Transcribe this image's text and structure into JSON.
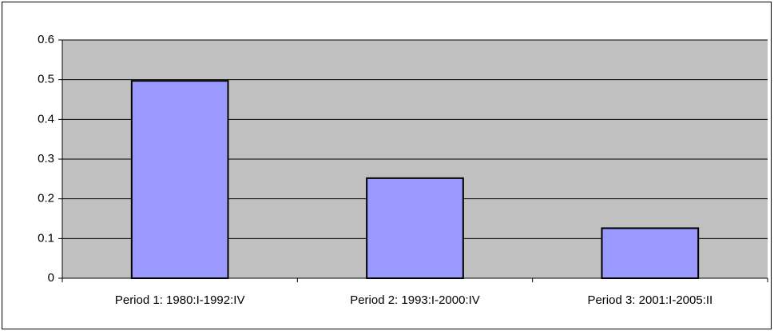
{
  "chart_data": {
    "type": "bar",
    "categories": [
      "Period 1: 1980:I-1992:IV",
      "Period 2: 1993:I-2000:IV",
      "Period 3: 2001:I-2005:II"
    ],
    "values": [
      0.497,
      0.252,
      0.126
    ],
    "color": "#9999ff",
    "ylim": [
      0,
      0.6
    ],
    "yticks": [
      0,
      0.1,
      0.2,
      0.3,
      0.4,
      0.5,
      0.6
    ],
    "grid": true
  }
}
